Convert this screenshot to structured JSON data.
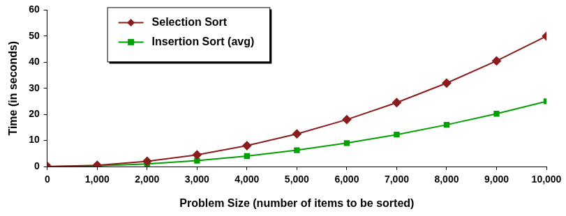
{
  "chart_data": {
    "type": "line",
    "x_label": "Problem Size (number of items to be sorted)",
    "y_label": "Time (in seconds)",
    "x": [
      0,
      1000,
      2000,
      3000,
      4000,
      5000,
      6000,
      7000,
      8000,
      9000,
      10000
    ],
    "series": [
      {
        "name": "Selection Sort",
        "color": "#8b1c1c",
        "marker": "diamond",
        "values": [
          0,
          0.5,
          2,
          4.5,
          8,
          12.5,
          18,
          24.5,
          32,
          40.5,
          50
        ]
      },
      {
        "name": "Insertion Sort (avg)",
        "color": "#00a000",
        "marker": "square",
        "values": [
          0,
          0.25,
          1,
          2.25,
          4,
          6.25,
          9,
          12.25,
          16,
          20.25,
          25
        ]
      }
    ],
    "xlim": [
      0,
      10000
    ],
    "xticks": [
      0,
      {
        "value": 1000,
        "label": "1,000"
      },
      {
        "value": 2000,
        "label": "2,000"
      },
      {
        "value": 3000,
        "label": "3,000"
      },
      {
        "value": 4000,
        "label": "4,000"
      },
      {
        "value": 5000,
        "label": "5,000"
      },
      {
        "value": 6000,
        "label": "6,000"
      },
      {
        "value": 7000,
        "label": "7,000"
      },
      {
        "value": 8000,
        "label": "8,000"
      },
      {
        "value": 9000,
        "label": "9,000"
      },
      {
        "value": 10000,
        "label": "10,000"
      }
    ],
    "ylim": [
      0,
      60
    ],
    "yticks": [
      0,
      10,
      20,
      30,
      40,
      50,
      60
    ],
    "grid": false,
    "legend": "top-left"
  }
}
